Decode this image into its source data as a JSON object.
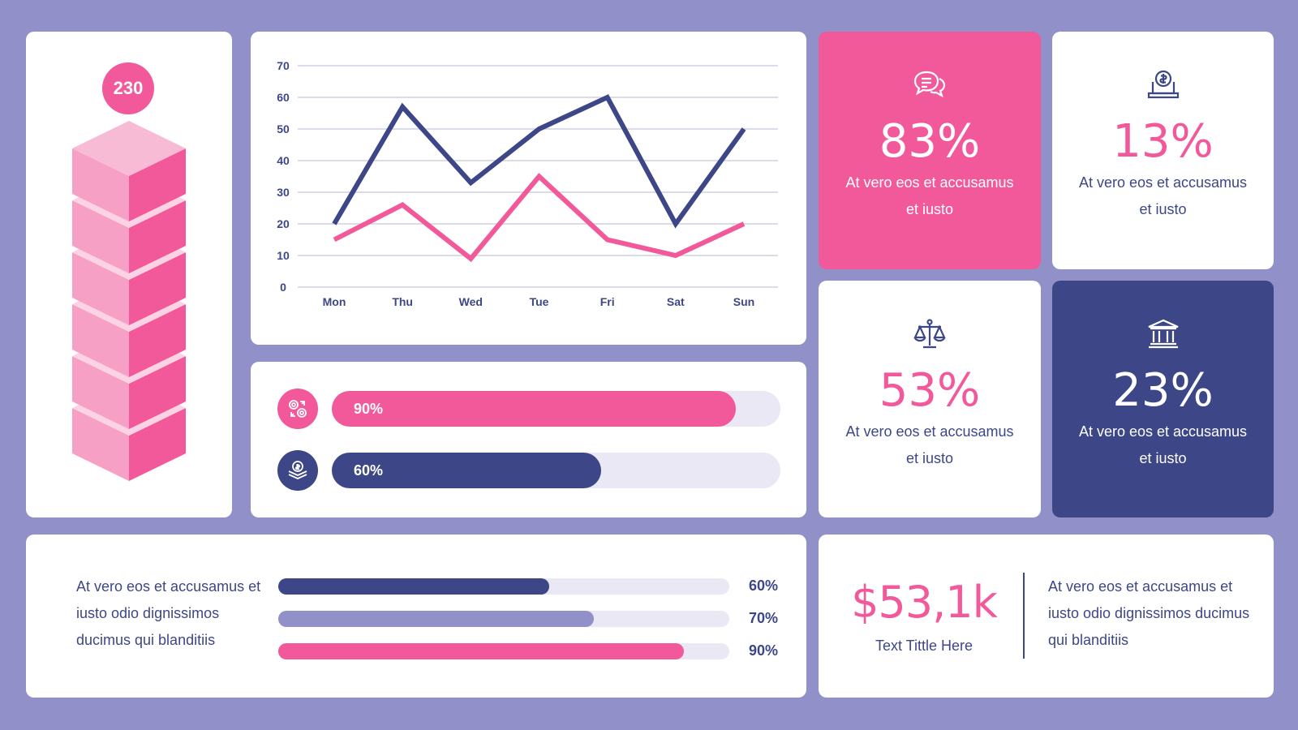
{
  "tower": {
    "badge": "230",
    "blocks": 6
  },
  "chart_data": {
    "type": "line",
    "categories": [
      "Mon",
      "Thu",
      "Wed",
      "Tue",
      "Fri",
      "Sat",
      "Sun"
    ],
    "series": [
      {
        "values": [
          20,
          57,
          33,
          50,
          60,
          20,
          50
        ],
        "color": "#3d4788"
      },
      {
        "values": [
          15,
          26,
          9,
          35,
          15,
          10,
          20
        ],
        "color": "#f2599a"
      }
    ],
    "yticks": [
      0,
      10,
      20,
      30,
      40,
      50,
      60,
      70
    ],
    "ylim": [
      0,
      70
    ],
    "grid": true
  },
  "progress": [
    {
      "label": "90%",
      "value": 0.9,
      "color": "#f2599a",
      "icon": "coins-exchange-icon"
    },
    {
      "label": "60%",
      "value": 0.6,
      "color": "#3d4788",
      "icon": "money-hand-icon"
    }
  ],
  "stats": [
    {
      "value": "83%",
      "text": "At vero eos et accusamus et iusto",
      "icon": "chat-bubbles-icon"
    },
    {
      "value": "13%",
      "text": "At vero eos et accusamus et iusto",
      "icon": "laptop-dollar-icon"
    },
    {
      "value": "53%",
      "text": "At vero eos et accusamus et iusto",
      "icon": "scales-icon"
    },
    {
      "value": "23%",
      "text": "At vero eos et accusamus et iusto",
      "icon": "bank-icon"
    }
  ],
  "bottom_bars": {
    "text": "At vero eos et accusamus et iusto odio dignissimos ducimus qui blanditiis",
    "bars": [
      {
        "label": "60%",
        "value": 0.6,
        "color": "#3d4788"
      },
      {
        "label": "70%",
        "value": 0.7,
        "color": "#9190c8"
      },
      {
        "label": "90%",
        "value": 0.9,
        "color": "#f2599a"
      }
    ]
  },
  "money": {
    "value": "$53,1k",
    "label": "Text Tittle Here",
    "text": "At vero eos et accusamus et iusto odio dignissimos ducimus qui blanditiis"
  },
  "colors": {
    "background": "#9190c8",
    "pink": "#f2599a",
    "navy": "#3d4788",
    "track": "#e9e8f4"
  }
}
